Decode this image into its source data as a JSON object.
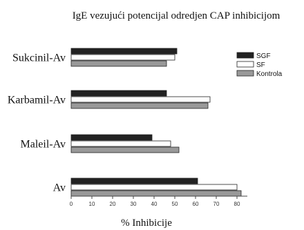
{
  "chart_data": {
    "type": "bar",
    "orientation": "horizontal",
    "title": "IgE vezujući potencijal odredjen CAP inhibicijom",
    "xlabel": "% Inhibicije",
    "ylabel": "",
    "categories": [
      "Sukcinil-Av",
      "Karbamil-Av",
      "Maleil-Av",
      "Av"
    ],
    "series": [
      {
        "name": "SGF",
        "color": "#222222",
        "values": [
          51,
          46,
          39,
          61
        ]
      },
      {
        "name": "SF",
        "color": "#ffffff",
        "values": [
          50,
          67,
          48,
          80
        ]
      },
      {
        "name": "Kontrola",
        "color": "#999999",
        "values": [
          46,
          66,
          52,
          82
        ]
      }
    ],
    "xlim": [
      0,
      85
    ],
    "xticks": [
      0,
      10,
      20,
      30,
      40,
      50,
      60,
      70,
      80
    ],
    "grid": false,
    "legend_position": "top-right"
  }
}
